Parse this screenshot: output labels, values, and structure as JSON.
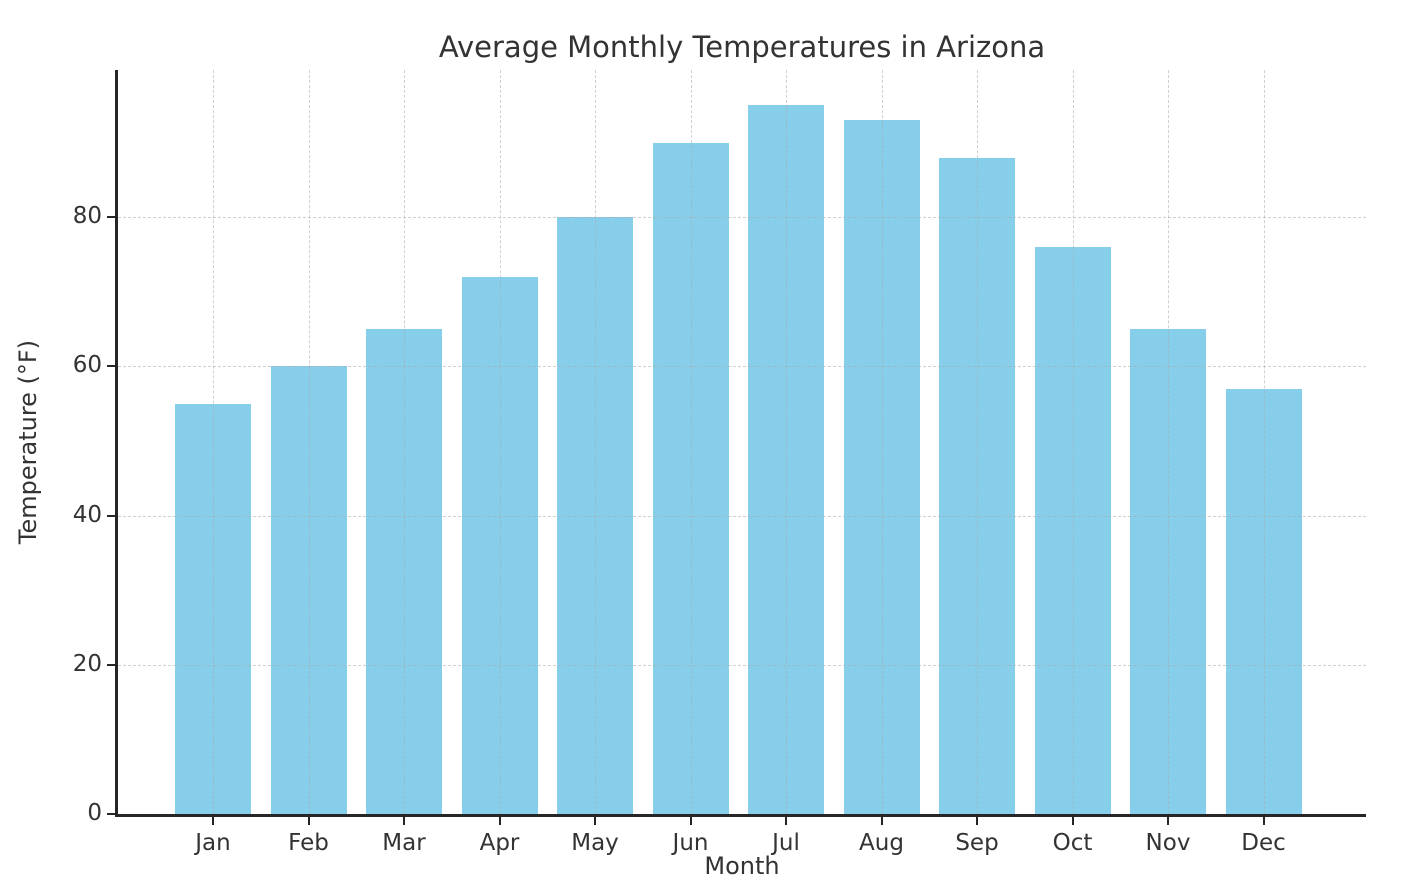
{
  "chart_data": {
    "type": "bar",
    "title": "Average Monthly Temperatures in Arizona",
    "xlabel": "Month",
    "ylabel": "Temperature (°F)",
    "categories": [
      "Jan",
      "Feb",
      "Mar",
      "Apr",
      "May",
      "Jun",
      "Jul",
      "Aug",
      "Sep",
      "Oct",
      "Nov",
      "Dec"
    ],
    "values": [
      55,
      60,
      65,
      72,
      80,
      90,
      95,
      93,
      88,
      76,
      65,
      57
    ],
    "yticks": [
      0,
      20,
      40,
      60,
      80
    ],
    "ylim": [
      0,
      99.75
    ],
    "bar_color": "#87CEEB",
    "grid": "on",
    "grid_line_style": "dashed",
    "grid_drawn_above_bars": true,
    "grid_color": "#c9c9c9",
    "axis_color": "#262626",
    "text_color": "#333333",
    "background_color": "#ffffff",
    "legend_position": "none",
    "visible_spines": [
      "left",
      "bottom"
    ]
  }
}
